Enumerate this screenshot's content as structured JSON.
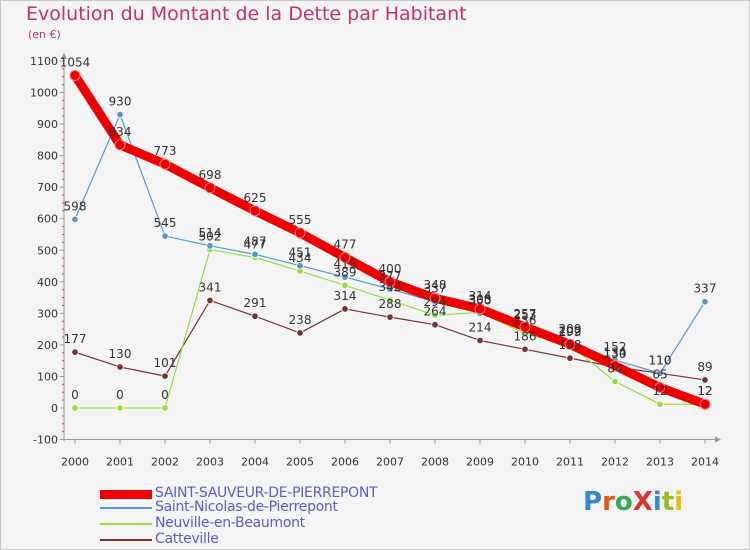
{
  "title": "Evolution du Montant de la Dette par Habitant",
  "subtitle": "(en €)",
  "brand": "ProXiti",
  "chart_data": {
    "type": "line",
    "x": [
      "2000",
      "2001",
      "2002",
      "2003",
      "2004",
      "2005",
      "2006",
      "2007",
      "2008",
      "2009",
      "2010",
      "2011",
      "2012",
      "2013",
      "2014"
    ],
    "ylim": [
      -100,
      1100
    ],
    "yticks": [
      -100,
      0,
      100,
      200,
      300,
      400,
      500,
      600,
      700,
      800,
      900,
      1000,
      1100
    ],
    "grid": false,
    "legend_position": "bottom-left",
    "series": [
      {
        "name": "SAINT-SAUVEUR-DE-PIERREPONT",
        "color": "#ee0000",
        "values": [
          1054,
          834,
          773,
          698,
          625,
          555,
          477,
          400,
          348,
          314,
          257,
          202,
          134,
          65,
          12
        ],
        "labels": [
          "1054",
          "834",
          "773",
          "698",
          "625",
          "555",
          "477",
          "400",
          "348",
          "314",
          "257",
          "202",
          "134",
          "65",
          "12"
        ]
      },
      {
        "name": "Saint-Nicolas-de-Pierrepont",
        "color": "#5599cc",
        "values": [
          598,
          930,
          545,
          514,
          487,
          451,
          415,
          377,
          337,
          300,
          253,
          209,
          152,
          110,
          337
        ],
        "labels": [
          "598",
          "930",
          "545",
          "514",
          "487",
          "451",
          "415",
          "377",
          "337",
          "300",
          "253",
          "209",
          "152",
          "110",
          "337"
        ]
      },
      {
        "name": "Neuville-en-Beaumont",
        "color": "#99dd44",
        "values": [
          0,
          0,
          0,
          502,
          477,
          434,
          389,
          342,
          294,
          303,
          236,
          199,
          84,
          12,
          12
        ],
        "labels": [
          "0",
          "0",
          "0",
          "502",
          "477",
          "434",
          "389",
          "342",
          "294",
          "303",
          "236",
          "199",
          "84",
          "12",
          "12"
        ]
      },
      {
        "name": "Catteville",
        "color": "#773333",
        "values": [
          177,
          130,
          101,
          341,
          291,
          238,
          314,
          288,
          264,
          214,
          186,
          158,
          130,
          110,
          89
        ],
        "labels": [
          "177",
          "130",
          "101",
          "341",
          "291",
          "238",
          "314",
          "288",
          "264",
          "214",
          "186",
          "158",
          "130",
          "110",
          "89"
        ]
      }
    ]
  }
}
